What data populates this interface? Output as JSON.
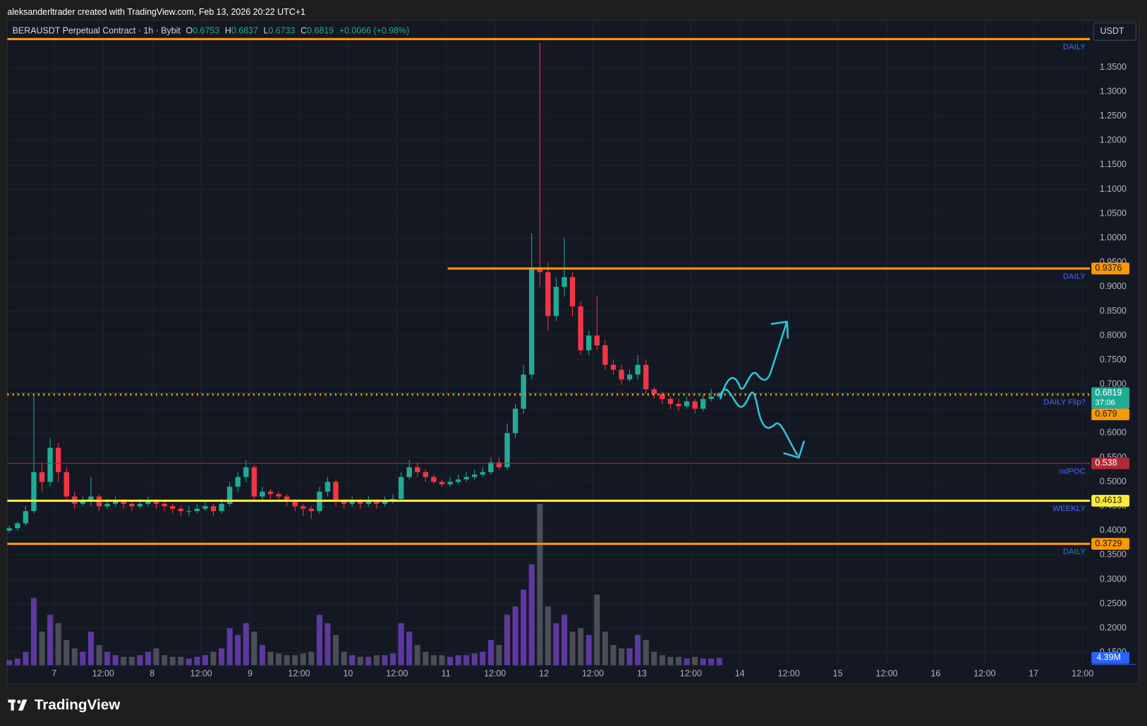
{
  "header": {
    "attribution": "aleksanderltrader created with TradingView.com, Feb 13, 2026 20:22 UTC+1"
  },
  "legend": {
    "instrument": "BERAUSDT Perpetual Contract · 1h · Bybit",
    "ohlc": [
      {
        "label": "O",
        "value": "0.6753"
      },
      {
        "label": "H",
        "value": "0.6837"
      },
      {
        "label": "L",
        "value": "0.6733"
      },
      {
        "label": "C",
        "value": "0.6819"
      }
    ],
    "change": "+0.0066 (+0.98%)"
  },
  "currency_button": "USDT",
  "logo": "TradingView",
  "chart_data": {
    "type": "candlestick",
    "x": [
      -11,
      -9,
      -7,
      -5,
      -3,
      -1,
      1,
      3,
      5,
      7,
      9,
      11,
      13,
      15,
      17,
      19,
      21,
      23,
      25,
      27,
      29,
      31,
      33,
      35,
      37,
      39,
      41,
      43,
      45,
      47,
      49,
      51,
      53,
      55,
      57,
      59,
      61,
      63,
      65,
      67,
      69,
      71,
      73,
      75,
      77,
      79,
      81,
      83,
      85,
      87,
      89,
      91,
      93,
      95,
      97,
      99,
      101,
      103,
      105,
      107,
      109,
      111,
      113,
      115,
      117,
      119,
      121,
      123,
      125,
      127,
      129,
      131,
      133,
      135,
      137,
      139,
      141,
      143,
      145,
      147,
      149,
      151,
      153,
      155,
      157,
      159,
      161,
      163
    ],
    "open": [
      0.4,
      0.405,
      0.415,
      0.44,
      0.52,
      0.5,
      0.57,
      0.52,
      0.47,
      0.455,
      0.46,
      0.47,
      0.45,
      0.455,
      0.46,
      0.455,
      0.45,
      0.455,
      0.46,
      0.455,
      0.45,
      0.445,
      0.44,
      0.44,
      0.445,
      0.45,
      0.44,
      0.455,
      0.49,
      0.51,
      0.53,
      0.47,
      0.48,
      0.475,
      0.47,
      0.46,
      0.45,
      0.445,
      0.44,
      0.48,
      0.5,
      0.46,
      0.455,
      0.46,
      0.455,
      0.46,
      0.455,
      0.46,
      0.465,
      0.51,
      0.53,
      0.52,
      0.51,
      0.5,
      0.495,
      0.5,
      0.505,
      0.51,
      0.515,
      0.52,
      0.54,
      0.53,
      0.6,
      0.65,
      0.72,
      0.94,
      0.93,
      0.84,
      0.9,
      0.92,
      0.86,
      0.77,
      0.8,
      0.78,
      0.74,
      0.73,
      0.71,
      0.72,
      0.74,
      0.69,
      0.68,
      0.67,
      0.66,
      0.655,
      0.665,
      0.65,
      0.67,
      0.6753
    ],
    "high": [
      0.41,
      0.42,
      0.45,
      0.68,
      0.54,
      0.59,
      0.58,
      0.53,
      0.48,
      0.47,
      0.51,
      0.475,
      0.465,
      0.47,
      0.465,
      0.46,
      0.465,
      0.47,
      0.465,
      0.46,
      0.455,
      0.45,
      0.45,
      0.455,
      0.46,
      0.455,
      0.465,
      0.5,
      0.52,
      0.545,
      0.535,
      0.49,
      0.485,
      0.48,
      0.475,
      0.465,
      0.455,
      0.45,
      0.49,
      0.51,
      0.505,
      0.465,
      0.47,
      0.465,
      0.47,
      0.465,
      0.47,
      0.475,
      0.52,
      0.545,
      0.54,
      0.525,
      0.515,
      0.505,
      0.51,
      0.515,
      0.52,
      0.525,
      0.53,
      0.55,
      0.55,
      0.62,
      0.66,
      0.74,
      1.01,
      1.4,
      0.95,
      0.92,
      1.0,
      0.93,
      0.87,
      0.81,
      0.88,
      0.79,
      0.75,
      0.74,
      0.73,
      0.76,
      0.75,
      0.695,
      0.685,
      0.675,
      0.67,
      0.675,
      0.67,
      0.68,
      0.69,
      0.6837
    ],
    "low": [
      0.395,
      0.4,
      0.41,
      0.435,
      0.48,
      0.49,
      0.5,
      0.46,
      0.445,
      0.45,
      0.45,
      0.44,
      0.445,
      0.45,
      0.445,
      0.44,
      0.445,
      0.45,
      0.445,
      0.44,
      0.435,
      0.43,
      0.43,
      0.435,
      0.44,
      0.43,
      0.435,
      0.45,
      0.48,
      0.5,
      0.46,
      0.46,
      0.465,
      0.46,
      0.45,
      0.44,
      0.43,
      0.425,
      0.435,
      0.47,
      0.45,
      0.445,
      0.45,
      0.445,
      0.45,
      0.445,
      0.45,
      0.455,
      0.46,
      0.505,
      0.51,
      0.5,
      0.495,
      0.49,
      0.49,
      0.495,
      0.5,
      0.505,
      0.51,
      0.515,
      0.525,
      0.525,
      0.59,
      0.64,
      0.71,
      0.9,
      0.81,
      0.83,
      0.88,
      0.84,
      0.76,
      0.76,
      0.77,
      0.73,
      0.72,
      0.7,
      0.705,
      0.71,
      0.68,
      0.67,
      0.66,
      0.65,
      0.645,
      0.65,
      0.64,
      0.645,
      0.665,
      0.6733
    ],
    "close": [
      0.405,
      0.415,
      0.44,
      0.52,
      0.5,
      0.57,
      0.52,
      0.47,
      0.455,
      0.46,
      0.47,
      0.45,
      0.455,
      0.46,
      0.455,
      0.45,
      0.455,
      0.46,
      0.455,
      0.45,
      0.445,
      0.44,
      0.44,
      0.445,
      0.45,
      0.44,
      0.455,
      0.49,
      0.51,
      0.53,
      0.47,
      0.48,
      0.475,
      0.47,
      0.46,
      0.45,
      0.445,
      0.44,
      0.48,
      0.5,
      0.46,
      0.455,
      0.46,
      0.455,
      0.46,
      0.455,
      0.46,
      0.465,
      0.51,
      0.53,
      0.52,
      0.51,
      0.5,
      0.495,
      0.5,
      0.505,
      0.51,
      0.515,
      0.52,
      0.54,
      0.53,
      0.6,
      0.65,
      0.72,
      0.94,
      0.93,
      0.84,
      0.9,
      0.92,
      0.86,
      0.77,
      0.8,
      0.78,
      0.74,
      0.73,
      0.71,
      0.72,
      0.74,
      0.69,
      0.68,
      0.67,
      0.66,
      0.655,
      0.665,
      0.65,
      0.67,
      0.675,
      0.6819
    ],
    "up_color": "#22ab94",
    "down_color": "#f23645",
    "volume": [
      3,
      4,
      8,
      40,
      20,
      30,
      25,
      15,
      10,
      8,
      20,
      12,
      8,
      6,
      5,
      5,
      6,
      8,
      10,
      6,
      5,
      5,
      4,
      5,
      6,
      8,
      10,
      22,
      18,
      25,
      20,
      12,
      8,
      7,
      6,
      6,
      7,
      8,
      30,
      25,
      18,
      8,
      6,
      5,
      5,
      6,
      6,
      7,
      25,
      20,
      12,
      8,
      6,
      6,
      5,
      6,
      6,
      7,
      8,
      15,
      12,
      30,
      35,
      45,
      60,
      96,
      35,
      25,
      30,
      20,
      22,
      18,
      42,
      20,
      12,
      10,
      10,
      18,
      15,
      8,
      6,
      5,
      5,
      4,
      5,
      4,
      4,
      4.39
    ],
    "volume_up_color": "#6a3fb5",
    "volume_down_color": "#555862",
    "volume_lim": [
      0,
      100
    ],
    "volume_last_label": "4.39M",
    "volume_tag_color": "#2962ff",
    "xlim": [
      -11.5,
      253.8
    ],
    "ylim": [
      0.124,
      1.446
    ],
    "xticks": [
      {
        "value": 0,
        "label": "7"
      },
      {
        "value": 12,
        "label": "12:00"
      },
      {
        "value": 24,
        "label": "8"
      },
      {
        "value": 36,
        "label": "12:00"
      },
      {
        "value": 48,
        "label": "9"
      },
      {
        "value": 60,
        "label": "12:00"
      },
      {
        "value": 72,
        "label": "10"
      },
      {
        "value": 84,
        "label": "12:00"
      },
      {
        "value": 96,
        "label": "11"
      },
      {
        "value": 108,
        "label": "12:00"
      },
      {
        "value": 120,
        "label": "12"
      },
      {
        "value": 132,
        "label": "12:00"
      },
      {
        "value": 144,
        "label": "13"
      },
      {
        "value": 156,
        "label": "12:00"
      },
      {
        "value": 168,
        "label": "14"
      },
      {
        "value": 180,
        "label": "12:00"
      },
      {
        "value": 192,
        "label": "15"
      },
      {
        "value": 204,
        "label": "12:00"
      },
      {
        "value": 216,
        "label": "16"
      },
      {
        "value": 228,
        "label": "12:00"
      },
      {
        "value": 240,
        "label": "17"
      },
      {
        "value": 252,
        "label": "12:00"
      }
    ],
    "yticks": [
      {
        "value": 0.15,
        "label": "0.1500"
      },
      {
        "value": 0.2,
        "label": "0.2000"
      },
      {
        "value": 0.25,
        "label": "0.2500"
      },
      {
        "value": 0.3,
        "label": "0.3000"
      },
      {
        "value": 0.35,
        "label": "0.3500"
      },
      {
        "value": 0.4,
        "label": "0.4000"
      },
      {
        "value": 0.45,
        "label": "0.4500"
      },
      {
        "value": 0.5,
        "label": "0.5000"
      },
      {
        "value": 0.55,
        "label": "0.5500"
      },
      {
        "value": 0.6,
        "label": "0.6000"
      },
      {
        "value": 0.65,
        "label": "0.6500"
      },
      {
        "value": 0.7,
        "label": "0.7000"
      },
      {
        "value": 0.75,
        "label": "0.7500"
      },
      {
        "value": 0.8,
        "label": "0.8000"
      },
      {
        "value": 0.85,
        "label": "0.8500"
      },
      {
        "value": 0.9,
        "label": "0.9000"
      },
      {
        "value": 0.95,
        "label": "0.9500"
      },
      {
        "value": 1.0,
        "label": "1.0000"
      },
      {
        "value": 1.05,
        "label": "1.0500"
      },
      {
        "value": 1.1,
        "label": "1.1000"
      },
      {
        "value": 1.15,
        "label": "1.1500"
      },
      {
        "value": 1.2,
        "label": "1.2000"
      },
      {
        "value": 1.25,
        "label": "1.2500"
      },
      {
        "value": 1.3,
        "label": "1.3000"
      },
      {
        "value": 1.35,
        "label": "1.3500"
      }
    ],
    "grid": true,
    "levels": [
      {
        "price": 1.408,
        "label": "DAILY",
        "color": "#ff9800",
        "style": "solid",
        "width": 3,
        "tag": false
      },
      {
        "price": 0.9376,
        "label": "DAILY",
        "color": "#ff9800",
        "style": "solid",
        "width": 3,
        "tag": true,
        "tag_text_color": "#131722",
        "from_x": 96.4
      },
      {
        "price": 0.679,
        "label": "DAILY Flip?",
        "color": "#ff9800",
        "style": "dotted",
        "width": 3,
        "tag": true,
        "tag_text_color": "#131722"
      },
      {
        "price": 0.538,
        "label": "ndPOC",
        "color": "#b22833",
        "style": "solid",
        "width": 1,
        "tag": true,
        "tag_text_color": "#ffffff"
      },
      {
        "price": 0.4613,
        "label": "WEEKLY",
        "color": "#ffeb3b",
        "style": "solid",
        "width": 3,
        "tag": true,
        "tag_text_color": "#131722"
      },
      {
        "price": 0.3729,
        "label": "DAILY",
        "color": "#ff9800",
        "style": "solid",
        "width": 3,
        "tag": true,
        "tag_text_color": "#131722"
      }
    ],
    "last_price": {
      "value": 0.6819,
      "countdown": "37:06",
      "color": "#22ab94"
    }
  }
}
